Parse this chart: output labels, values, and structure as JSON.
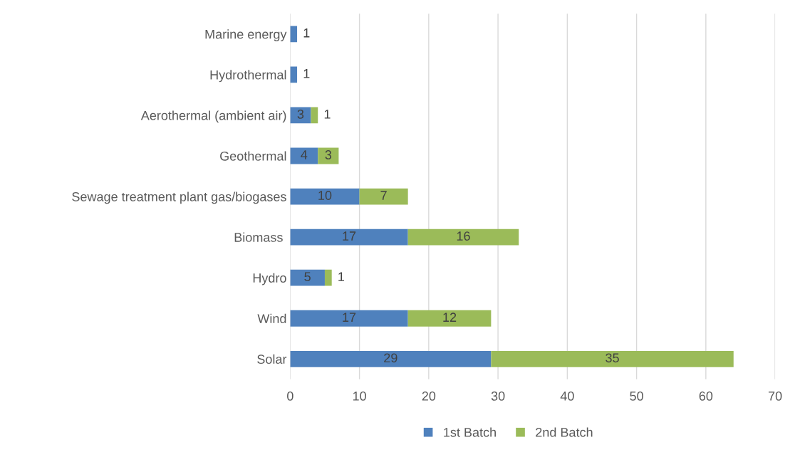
{
  "chart_data": {
    "type": "bar",
    "orientation": "horizontal",
    "stacked": true,
    "categories": [
      "Marine energy",
      "Hydrothermal",
      "Aerothermal (ambient air)",
      "Geothermal",
      "Sewage treatment plant gas/biogases",
      "Biomass ",
      "Hydro",
      "Wind",
      "Solar"
    ],
    "series": [
      {
        "name": "1st Batch",
        "color": "#4f81bd",
        "values": [
          1,
          1,
          3,
          4,
          10,
          17,
          5,
          17,
          29
        ]
      },
      {
        "name": "2nd Batch",
        "color": "#9bbb59",
        "values": [
          null,
          null,
          1,
          3,
          7,
          16,
          1,
          12,
          35
        ]
      }
    ],
    "xlim": [
      0,
      70
    ],
    "xticks": [
      0,
      10,
      20,
      30,
      40,
      50,
      60,
      70
    ],
    "grid": "x",
    "legend": "bottom",
    "data_labels": true
  }
}
